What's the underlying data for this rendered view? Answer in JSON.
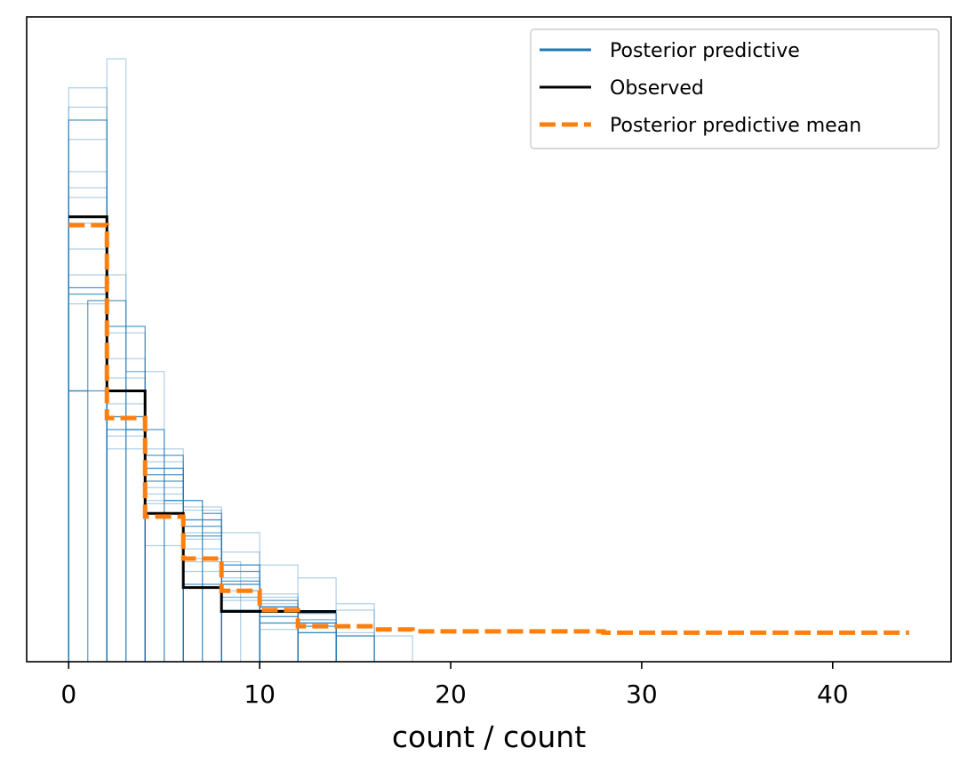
{
  "chart_data": {
    "type": "line",
    "title": "",
    "xlabel": "count / count",
    "ylabel": "",
    "xlim": [
      -2.2,
      46.2
    ],
    "ylim": [
      0.0,
      1.0
    ],
    "y_ticks_visible": false,
    "x_ticks": [
      0,
      10,
      20,
      30,
      40
    ],
    "x_tick_labels": [
      "0",
      "10",
      "20",
      "30",
      "40"
    ],
    "grid": false,
    "legend_placement": "top-right",
    "colors": {
      "posterior_predictive": "#1f77b4",
      "observed": "#000000",
      "posterior_predictive_mean": "#ff7f0e"
    },
    "series": [
      {
        "name": "Posterior predictive",
        "style": "step",
        "samples": [
          [
            [
              0,
              2,
              0.84
            ],
            [
              2,
              4,
              0.42
            ],
            [
              4,
              6,
              0.28
            ],
            [
              6,
              8,
              0.12
            ],
            [
              8,
              10,
              0.08
            ],
            [
              10,
              12,
              0.06
            ],
            [
              12,
              14,
              0.045
            ]
          ],
          [
            [
              0,
              2,
              0.735
            ],
            [
              2,
              4,
              0.38
            ],
            [
              4,
              6,
              0.23
            ],
            [
              6,
              8,
              0.155
            ],
            [
              8,
              10,
              0.1
            ],
            [
              10,
              12,
              0.08
            ],
            [
              12,
              14,
              0.045
            ],
            [
              14,
              16,
              0.04
            ]
          ],
          [
            [
              0,
              2,
              0.64
            ],
            [
              2,
              4,
              0.47
            ],
            [
              4,
              6,
              0.3
            ],
            [
              6,
              8,
              0.2
            ],
            [
              8,
              10,
              0.12
            ],
            [
              10,
              12,
              0.09
            ],
            [
              12,
              14,
              0.065
            ],
            [
              14,
              16,
              0.045
            ],
            [
              16,
              18,
              0.04
            ]
          ],
          [
            [
              0,
              2,
              0.57
            ],
            [
              2,
              4,
              0.52
            ],
            [
              4,
              6,
              0.32
            ],
            [
              6,
              8,
              0.22
            ],
            [
              8,
              10,
              0.15
            ],
            [
              10,
              12,
              0.095
            ],
            [
              12,
              14,
              0.075
            ]
          ],
          [
            [
              0,
              2,
              0.6
            ],
            [
              2,
              4,
              0.4
            ],
            [
              4,
              6,
              0.27
            ],
            [
              6,
              8,
              0.19
            ],
            [
              8,
              10,
              0.17
            ],
            [
              10,
              12,
              0.105
            ]
          ],
          [
            [
              0,
              2,
              0.76
            ],
            [
              2,
              4,
              0.35
            ],
            [
              4,
              6,
              0.25
            ],
            [
              6,
              8,
              0.14
            ],
            [
              8,
              10,
              0.1
            ],
            [
              10,
              12,
              0.05
            ],
            [
              12,
              14,
              0.045
            ]
          ],
          [
            [
              0,
              2,
              0.42
            ],
            [
              2,
              4,
              0.38
            ],
            [
              4,
              6,
              0.3
            ],
            [
              6,
              8,
              0.195
            ],
            [
              8,
              10,
              0.125
            ],
            [
              10,
              12,
              0.085
            ],
            [
              12,
              14,
              0.06
            ],
            [
              14,
              16,
              0.04
            ]
          ],
          [
            [
              0,
              2,
              0.89
            ],
            [
              2,
              4,
              0.44
            ],
            [
              4,
              6,
              0.26
            ],
            [
              6,
              8,
              0.175
            ],
            [
              8,
              10,
              0.13
            ],
            [
              10,
              12,
              0.07
            ]
          ],
          [
            [
              0,
              2,
              0.68
            ],
            [
              2,
              4,
              0.51
            ],
            [
              4,
              6,
              0.245
            ],
            [
              6,
              8,
              0.16
            ],
            [
              8,
              10,
              0.095
            ],
            [
              10,
              12,
              0.06
            ]
          ],
          [
            [
              0,
              2,
              0.58
            ],
            [
              2,
              4,
              0.36
            ],
            [
              4,
              6,
              0.29
            ],
            [
              6,
              8,
              0.21
            ],
            [
              8,
              10,
              0.14
            ],
            [
              10,
              12,
              0.085
            ],
            [
              12,
              14,
              0.055
            ]
          ],
          [
            [
              0,
              2,
              0.81
            ],
            [
              2,
              3,
              0.935
            ],
            [
              3,
              4,
              0.45
            ],
            [
              4,
              6,
              0.31
            ],
            [
              6,
              8,
              0.235
            ],
            [
              8,
              9,
              0.155
            ],
            [
              9,
              10,
              0.11
            ]
          ],
          [
            [
              0,
              2,
              0.555
            ],
            [
              2,
              3,
              0.6
            ],
            [
              3,
              5,
              0.45
            ],
            [
              5,
              7,
              0.25
            ],
            [
              7,
              8,
              0.2
            ],
            [
              8,
              10,
              0.15
            ],
            [
              10,
              12,
              0.1
            ]
          ],
          [
            [
              0,
              1,
              0.42
            ],
            [
              1,
              3,
              0.56
            ],
            [
              3,
              5,
              0.36
            ],
            [
              5,
              7,
              0.25
            ],
            [
              7,
              8,
              0.23
            ],
            [
              8,
              10,
              0.12
            ],
            [
              10,
              12,
              0.07
            ],
            [
              12,
              14,
              0.06
            ]
          ],
          [
            [
              0,
              2,
              0.86
            ],
            [
              2,
              4,
              0.33
            ],
            [
              4,
              6,
              0.18
            ],
            [
              6,
              8,
              0.24
            ],
            [
              8,
              10,
              0.2
            ],
            [
              10,
              12,
              0.15
            ],
            [
              12,
              14,
              0.13
            ],
            [
              14,
              16,
              0.09
            ]
          ],
          [
            [
              0,
              2,
              0.72
            ],
            [
              2,
              4,
              0.42
            ],
            [
              4,
              6,
              0.33
            ],
            [
              6,
              8,
              0.22
            ],
            [
              8,
              10,
              0.11
            ],
            [
              10,
              12,
              0.08
            ],
            [
              12,
              14,
              0.065
            ],
            [
              14,
              16,
              0.08
            ]
          ]
        ]
      },
      {
        "name": "Observed",
        "style": "step",
        "x": [
          0,
          2,
          2,
          4,
          4,
          6,
          6,
          8,
          8,
          14
        ],
        "y": [
          0.69,
          0.69,
          0.42,
          0.42,
          0.23,
          0.23,
          0.115,
          0.115,
          0.078,
          0.078
        ]
      },
      {
        "name": "Posterior predictive mean",
        "style": "step-dashed",
        "x": [
          0,
          2,
          2,
          4,
          4,
          6,
          6,
          8,
          8,
          10,
          10,
          12,
          12,
          16,
          16,
          18,
          18,
          28,
          28,
          44
        ],
        "y": [
          0.677,
          0.677,
          0.378,
          0.378,
          0.225,
          0.225,
          0.16,
          0.16,
          0.11,
          0.11,
          0.08,
          0.08,
          0.055,
          0.055,
          0.05,
          0.05,
          0.047,
          0.047,
          0.045,
          0.045
        ]
      }
    ]
  }
}
